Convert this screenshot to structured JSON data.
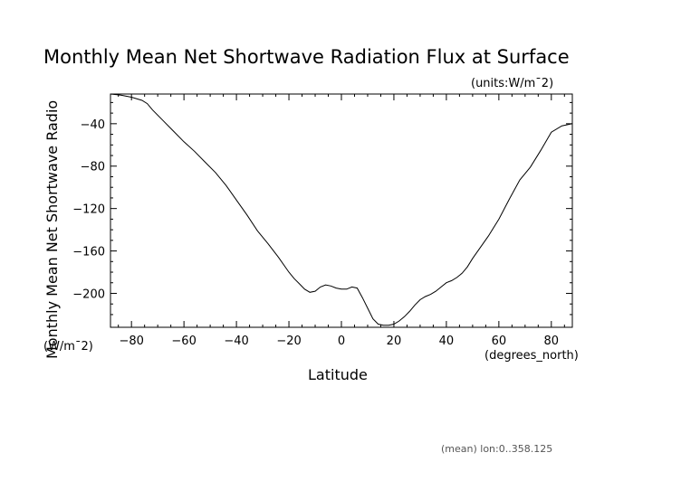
{
  "chart_data": {
    "type": "line",
    "title": "Monthly Mean Net Shortwave Radiation Flux at Surface",
    "units_label": "(units:W/m¯2)",
    "xlabel": "Latitude",
    "x_unit_label": "(degrees_north)",
    "ylabel": "Monthly Mean Net Shortwave Radio",
    "y_unit_label": "(W/m¯2)",
    "footnote": "(mean) lon:0..358.125",
    "xlim": [
      -88,
      88
    ],
    "ylim": [
      -232,
      -12
    ],
    "x_ticks": [
      -80,
      -60,
      -40,
      -20,
      0,
      20,
      40,
      60,
      80
    ],
    "y_ticks": [
      -40,
      -80,
      -120,
      -160,
      -200
    ],
    "x_tick_labels": [
      "−80",
      "−60",
      "−40",
      "−20",
      "0",
      "20",
      "40",
      "60",
      "80"
    ],
    "y_tick_labels": [
      "−40",
      "−80",
      "−120",
      "−160",
      "−200"
    ],
    "grid": false,
    "series": [
      {
        "x": [
          -88,
          -84,
          -80,
          -76,
          -74,
          -72,
          -68,
          -64,
          -60,
          -56,
          -52,
          -48,
          -44,
          -40,
          -36,
          -32,
          -28,
          -24,
          -20,
          -18,
          -16,
          -14,
          -12,
          -10,
          -8,
          -6,
          -4,
          -2,
          0,
          2,
          4,
          6,
          8,
          10,
          12,
          14,
          16,
          18,
          20,
          22,
          24,
          26,
          28,
          30,
          32,
          34,
          36,
          38,
          40,
          42,
          44,
          46,
          48,
          50,
          52,
          56,
          60,
          64,
          68,
          72,
          76,
          80,
          84,
          88
        ],
        "y": [
          -12,
          -13,
          -15,
          -18,
          -21,
          -27,
          -37,
          -47,
          -57,
          -66,
          -76,
          -86,
          -98,
          -112,
          -126,
          -141,
          -153,
          -166,
          -180,
          -186,
          -191,
          -196,
          -199,
          -198,
          -194,
          -192,
          -193,
          -195,
          -196,
          -196,
          -194,
          -195,
          -204,
          -214,
          -224,
          -229,
          -230,
          -230,
          -229,
          -226,
          -222,
          -217,
          -211,
          -206,
          -203,
          -201,
          -198,
          -194,
          -190,
          -188,
          -185,
          -181,
          -175,
          -167,
          -160,
          -146,
          -130,
          -111,
          -93,
          -81,
          -65,
          -48,
          -42,
          -40
        ]
      }
    ]
  }
}
